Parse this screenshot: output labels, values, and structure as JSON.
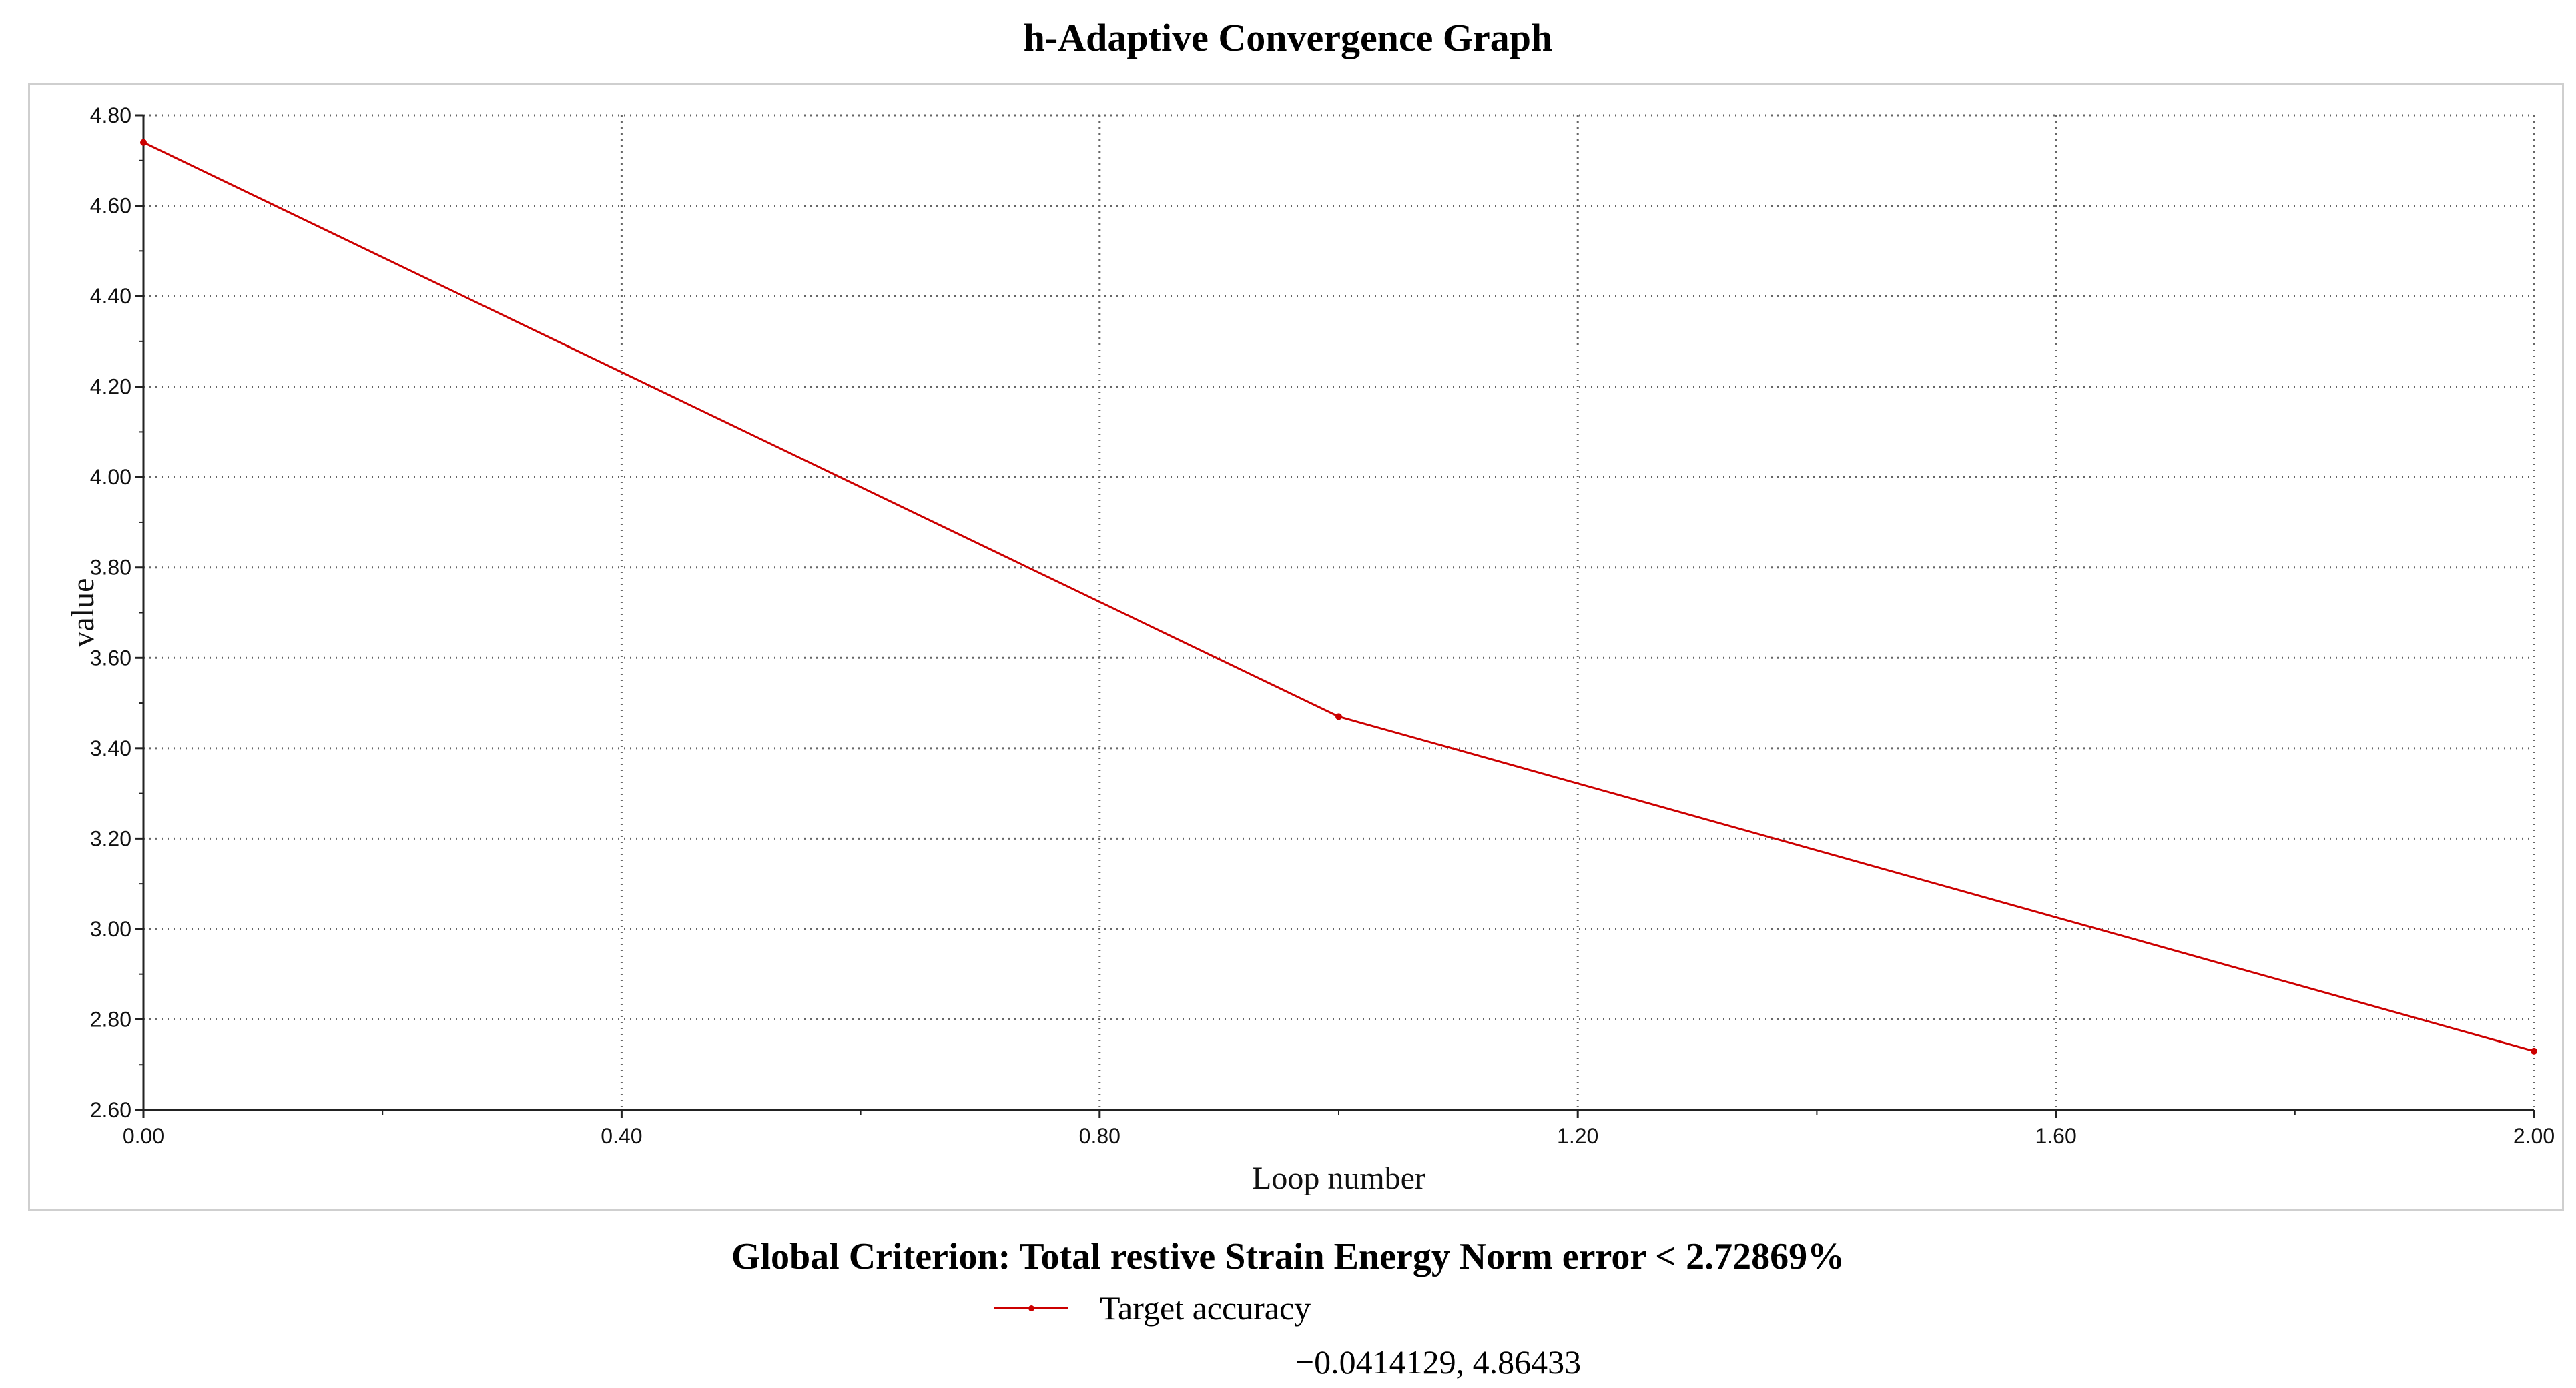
{
  "chart_data": {
    "type": "line",
    "title": "h-Adaptive Convergence Graph",
    "xlabel": "Loop number",
    "ylabel": "value",
    "xlim": [
      0,
      2
    ],
    "ylim": [
      2.6,
      4.8
    ],
    "xticks": [
      0,
      0.4,
      0.8,
      1.2,
      1.6,
      2.0
    ],
    "xtick_labels": [
      "0.00",
      "0.40",
      "0.80",
      "1.20",
      "1.60",
      "2.00"
    ],
    "yticks": [
      2.6,
      2.8,
      3.0,
      3.2,
      3.4,
      3.6,
      3.8,
      4.0,
      4.2,
      4.4,
      4.6,
      4.8
    ],
    "ytick_labels": [
      "2.60",
      "2.80",
      "3.00",
      "3.20",
      "3.40",
      "3.60",
      "3.80",
      "4.00",
      "4.20",
      "4.40",
      "4.60",
      "4.80"
    ],
    "grid": true,
    "series": [
      {
        "name": "Target accuracy",
        "color": "#cc0000",
        "x": [
          0,
          1,
          2
        ],
        "y": [
          4.74,
          3.47,
          2.73
        ]
      }
    ],
    "legend_position": "bottom"
  },
  "criterion_text": "Global Criterion: Total restive Strain Energy Norm error < 2.72869%",
  "legend_label": "Target accuracy",
  "coordinate_readout": "−0.0414129, 4.86433"
}
